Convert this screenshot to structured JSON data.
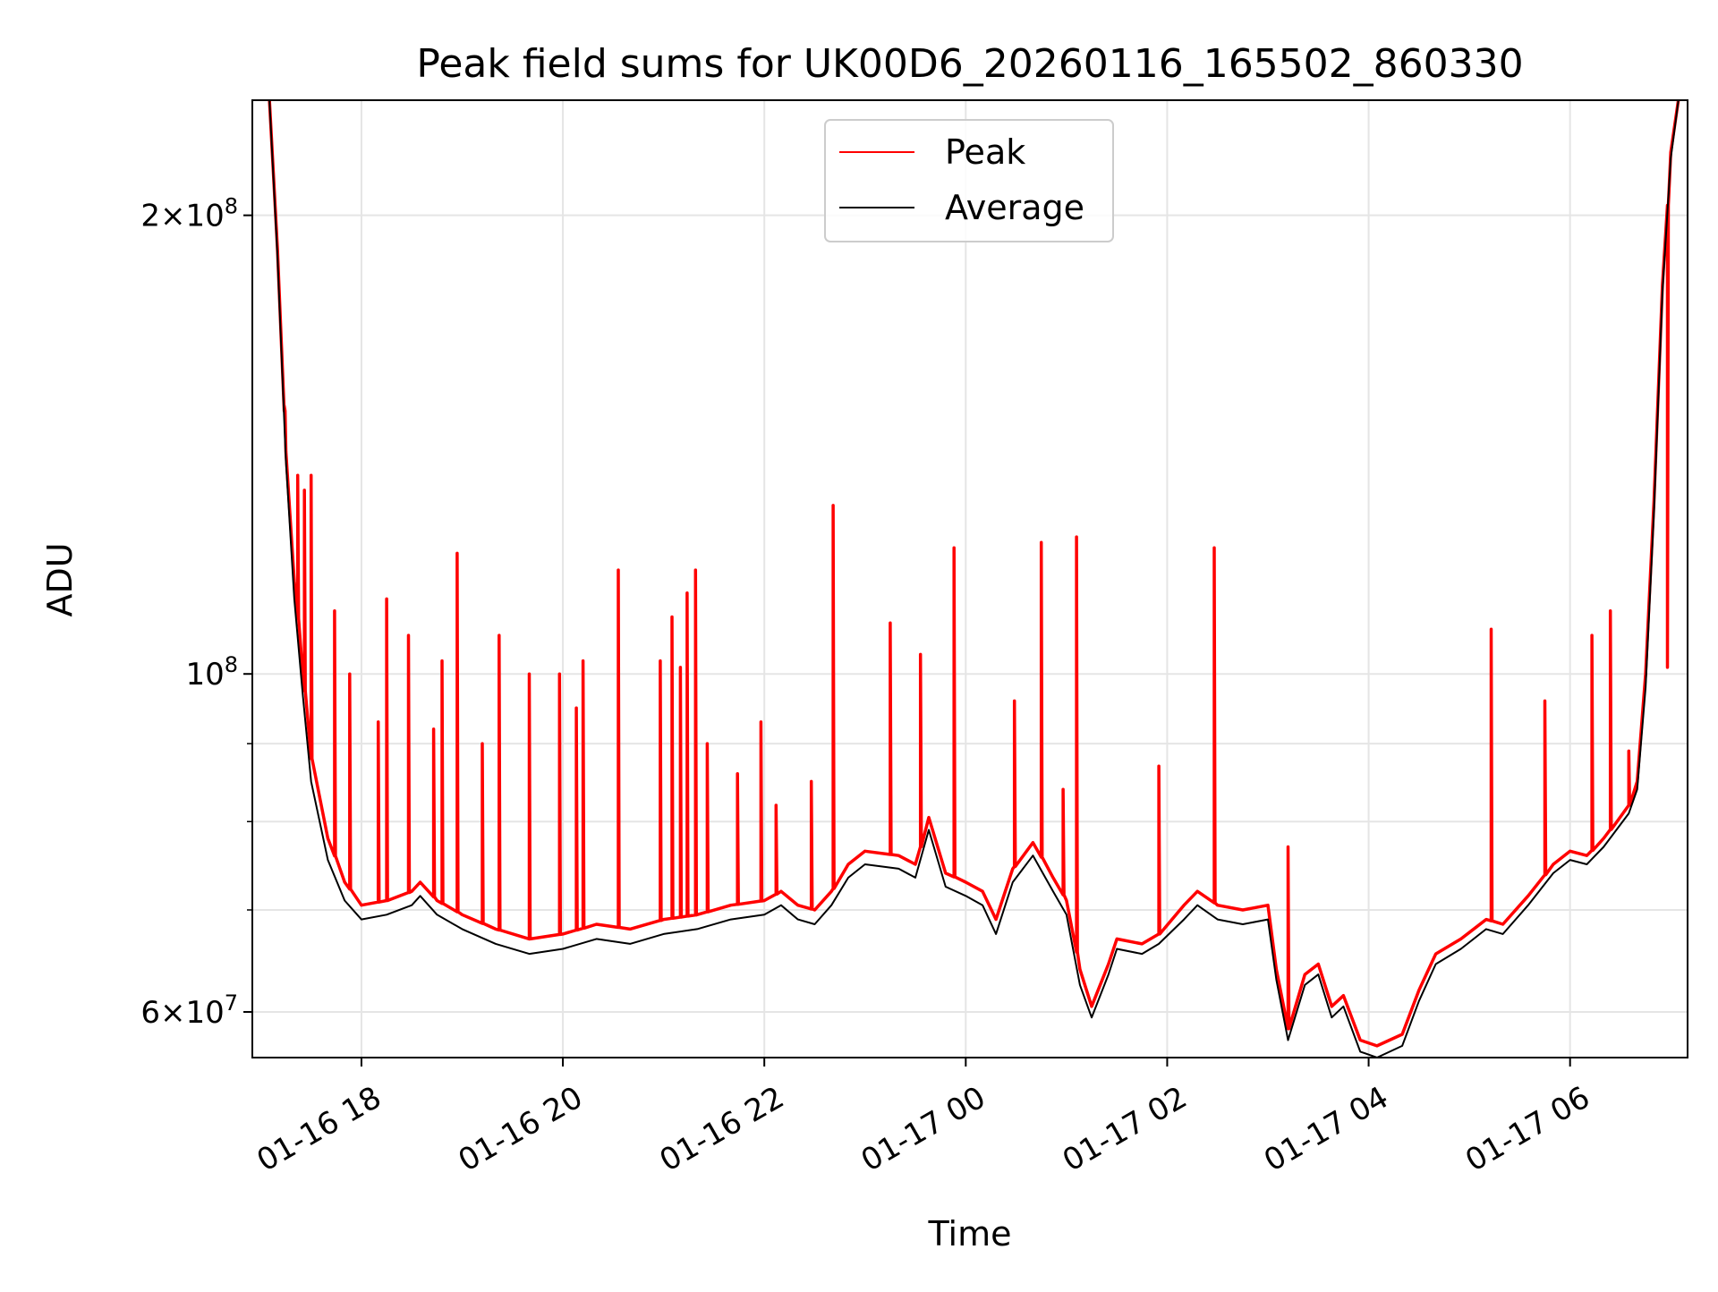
{
  "chart_data": {
    "type": "line",
    "title": "Peak field sums for UK00D6_20260116_165502_860330",
    "xlabel": "Time",
    "ylabel": "ADU",
    "yscale": "log",
    "ylim": [
      56000000,
      238000000
    ],
    "xlim": [
      "2026-01-16 16:55",
      "2026-01-17 07:10"
    ],
    "x_ticks": [
      {
        "label": "01-16 18",
        "t": "2026-01-16 18:00"
      },
      {
        "label": "01-16 20",
        "t": "2026-01-16 20:00"
      },
      {
        "label": "01-16 22",
        "t": "2026-01-16 22:00"
      },
      {
        "label": "01-17 00",
        "t": "2026-01-17 00:00"
      },
      {
        "label": "01-17 02",
        "t": "2026-01-17 02:00"
      },
      {
        "label": "01-17 04",
        "t": "2026-01-17 04:00"
      },
      {
        "label": "01-17 06",
        "t": "2026-01-17 06:00"
      }
    ],
    "y_ticks": [
      {
        "value": 60000000,
        "base": "6",
        "exp": "7"
      },
      {
        "value": 100000000,
        "base": "",
        "exp": "8"
      },
      {
        "value": 200000000,
        "base": "2",
        "exp": "8"
      }
    ],
    "y_minor_ticks": [
      70000000,
      80000000,
      90000000
    ],
    "grid": true,
    "legend_position": "upper center",
    "series": [
      {
        "name": "Peak",
        "color": "#ff0000",
        "points": [
          [
            "2026-01-16 17:05",
            240000000
          ],
          [
            "2026-01-16 17:10",
            190000000
          ],
          [
            "2026-01-16 17:15",
            140000000
          ],
          [
            "2026-01-16 17:20",
            115000000
          ],
          [
            "2026-01-16 17:25",
            100000000
          ],
          [
            "2026-01-16 17:30",
            88000000
          ],
          [
            "2026-01-16 17:40",
            78000000
          ],
          [
            "2026-01-16 17:50",
            73000000
          ],
          [
            "2026-01-16 18:00",
            70500000
          ],
          [
            "2026-01-16 18:15",
            71000000
          ],
          [
            "2026-01-16 18:30",
            72000000
          ],
          [
            "2026-01-16 18:35",
            73000000
          ],
          [
            "2026-01-16 18:45",
            71000000
          ],
          [
            "2026-01-16 19:00",
            69500000
          ],
          [
            "2026-01-16 19:20",
            68000000
          ],
          [
            "2026-01-16 19:40",
            67000000
          ],
          [
            "2026-01-16 20:00",
            67500000
          ],
          [
            "2026-01-16 20:20",
            68500000
          ],
          [
            "2026-01-16 20:40",
            68000000
          ],
          [
            "2026-01-16 21:00",
            69000000
          ],
          [
            "2026-01-16 21:20",
            69500000
          ],
          [
            "2026-01-16 21:40",
            70500000
          ],
          [
            "2026-01-16 22:00",
            71000000
          ],
          [
            "2026-01-16 22:10",
            72000000
          ],
          [
            "2026-01-16 22:20",
            70500000
          ],
          [
            "2026-01-16 22:30",
            70000000
          ],
          [
            "2026-01-16 22:40",
            72000000
          ],
          [
            "2026-01-16 22:50",
            75000000
          ],
          [
            "2026-01-16 23:00",
            76500000
          ],
          [
            "2026-01-16 23:20",
            76000000
          ],
          [
            "2026-01-16 23:30",
            75000000
          ],
          [
            "2026-01-16 23:38",
            80500000
          ],
          [
            "2026-01-16 23:48",
            74000000
          ],
          [
            "2026-01-17 00:00",
            73000000
          ],
          [
            "2026-01-17 00:10",
            72000000
          ],
          [
            "2026-01-17 00:18",
            69000000
          ],
          [
            "2026-01-17 00:28",
            74500000
          ],
          [
            "2026-01-17 00:40",
            77500000
          ],
          [
            "2026-01-17 00:52",
            73500000
          ],
          [
            "2026-01-17 01:00",
            71000000
          ],
          [
            "2026-01-17 01:08",
            64000000
          ],
          [
            "2026-01-17 01:15",
            60500000
          ],
          [
            "2026-01-17 01:25",
            64500000
          ],
          [
            "2026-01-17 01:30",
            67000000
          ],
          [
            "2026-01-17 01:45",
            66500000
          ],
          [
            "2026-01-17 01:55",
            67500000
          ],
          [
            "2026-01-17 02:10",
            70500000
          ],
          [
            "2026-01-17 02:18",
            72000000
          ],
          [
            "2026-01-17 02:30",
            70500000
          ],
          [
            "2026-01-17 02:45",
            70000000
          ],
          [
            "2026-01-17 03:00",
            70500000
          ],
          [
            "2026-01-17 03:05",
            64000000
          ],
          [
            "2026-01-17 03:12",
            58500000
          ],
          [
            "2026-01-17 03:22",
            63500000
          ],
          [
            "2026-01-17 03:30",
            64500000
          ],
          [
            "2026-01-17 03:38",
            60500000
          ],
          [
            "2026-01-17 03:45",
            61500000
          ],
          [
            "2026-01-17 03:55",
            57500000
          ],
          [
            "2026-01-17 04:05",
            57000000
          ],
          [
            "2026-01-17 04:20",
            58000000
          ],
          [
            "2026-01-17 04:30",
            62000000
          ],
          [
            "2026-01-17 04:40",
            65500000
          ],
          [
            "2026-01-17 04:55",
            67000000
          ],
          [
            "2026-01-17 05:10",
            69000000
          ],
          [
            "2026-01-17 05:20",
            68500000
          ],
          [
            "2026-01-17 05:35",
            71500000
          ],
          [
            "2026-01-17 05:50",
            75000000
          ],
          [
            "2026-01-17 06:00",
            76500000
          ],
          [
            "2026-01-17 06:10",
            76000000
          ],
          [
            "2026-01-17 06:20",
            78000000
          ],
          [
            "2026-01-17 06:35",
            82000000
          ],
          [
            "2026-01-17 06:40",
            85000000
          ],
          [
            "2026-01-17 06:45",
            100000000
          ],
          [
            "2026-01-17 06:50",
            130000000
          ],
          [
            "2026-01-17 06:55",
            180000000
          ],
          [
            "2026-01-17 07:00",
            220000000
          ],
          [
            "2026-01-17 07:05",
            240000000
          ]
        ],
        "spikes": [
          [
            "2026-01-16 17:14",
            150000000
          ],
          [
            "2026-01-16 17:22",
            135000000
          ],
          [
            "2026-01-16 17:26",
            132000000
          ],
          [
            "2026-01-16 17:30",
            135000000
          ],
          [
            "2026-01-16 17:44",
            110000000
          ],
          [
            "2026-01-16 17:53",
            100000000
          ],
          [
            "2026-01-16 18:10",
            93000000
          ],
          [
            "2026-01-16 18:15",
            112000000
          ],
          [
            "2026-01-16 18:28",
            106000000
          ],
          [
            "2026-01-16 18:43",
            92000000
          ],
          [
            "2026-01-16 18:48",
            102000000
          ],
          [
            "2026-01-16 18:57",
            120000000
          ],
          [
            "2026-01-16 19:12",
            90000000
          ],
          [
            "2026-01-16 19:22",
            106000000
          ],
          [
            "2026-01-16 19:40",
            100000000
          ],
          [
            "2026-01-16 19:58",
            100000000
          ],
          [
            "2026-01-16 20:08",
            95000000
          ],
          [
            "2026-01-16 20:12",
            102000000
          ],
          [
            "2026-01-16 20:33",
            117000000
          ],
          [
            "2026-01-16 20:58",
            102000000
          ],
          [
            "2026-01-16 21:05",
            109000000
          ],
          [
            "2026-01-16 21:10",
            101000000
          ],
          [
            "2026-01-16 21:14",
            113000000
          ],
          [
            "2026-01-16 21:19",
            117000000
          ],
          [
            "2026-01-16 21:26",
            90000000
          ],
          [
            "2026-01-16 21:44",
            86000000
          ],
          [
            "2026-01-16 21:58",
            93000000
          ],
          [
            "2026-01-16 22:07",
            82000000
          ],
          [
            "2026-01-16 22:28",
            85000000
          ],
          [
            "2026-01-16 22:41",
            129000000
          ],
          [
            "2026-01-16 23:15",
            108000000
          ],
          [
            "2026-01-16 23:33",
            103000000
          ],
          [
            "2026-01-16 23:53",
            121000000
          ],
          [
            "2026-01-17 00:29",
            96000000
          ],
          [
            "2026-01-17 00:45",
            122000000
          ],
          [
            "2026-01-17 00:58",
            84000000
          ],
          [
            "2026-01-17 01:06",
            123000000
          ],
          [
            "2026-01-17 01:55",
            87000000
          ],
          [
            "2026-01-17 02:28",
            121000000
          ],
          [
            "2026-01-17 03:12",
            77000000
          ],
          [
            "2026-01-17 05:13",
            107000000
          ],
          [
            "2026-01-17 05:45",
            96000000
          ],
          [
            "2026-01-17 06:13",
            106000000
          ],
          [
            "2026-01-17 06:24",
            110000000
          ],
          [
            "2026-01-17 06:35",
            89000000
          ],
          [
            "2026-01-17 06:58",
            101000000
          ]
        ]
      },
      {
        "name": "Average",
        "color": "#000000",
        "points": [
          [
            "2026-01-16 17:05",
            240000000
          ],
          [
            "2026-01-16 17:10",
            188000000
          ],
          [
            "2026-01-16 17:15",
            138000000
          ],
          [
            "2026-01-16 17:20",
            112000000
          ],
          [
            "2026-01-16 17:25",
            97000000
          ],
          [
            "2026-01-16 17:30",
            85000000
          ],
          [
            "2026-01-16 17:40",
            75500000
          ],
          [
            "2026-01-16 17:50",
            71000000
          ],
          [
            "2026-01-16 18:00",
            69000000
          ],
          [
            "2026-01-16 18:15",
            69500000
          ],
          [
            "2026-01-16 18:30",
            70500000
          ],
          [
            "2026-01-16 18:35",
            71500000
          ],
          [
            "2026-01-16 18:45",
            69500000
          ],
          [
            "2026-01-16 19:00",
            68000000
          ],
          [
            "2026-01-16 19:20",
            66500000
          ],
          [
            "2026-01-16 19:40",
            65500000
          ],
          [
            "2026-01-16 20:00",
            66000000
          ],
          [
            "2026-01-16 20:20",
            67000000
          ],
          [
            "2026-01-16 20:40",
            66500000
          ],
          [
            "2026-01-16 21:00",
            67500000
          ],
          [
            "2026-01-16 21:20",
            68000000
          ],
          [
            "2026-01-16 21:40",
            69000000
          ],
          [
            "2026-01-16 22:00",
            69500000
          ],
          [
            "2026-01-16 22:10",
            70500000
          ],
          [
            "2026-01-16 22:20",
            69000000
          ],
          [
            "2026-01-16 22:30",
            68500000
          ],
          [
            "2026-01-16 22:40",
            70500000
          ],
          [
            "2026-01-16 22:50",
            73500000
          ],
          [
            "2026-01-16 23:00",
            75000000
          ],
          [
            "2026-01-16 23:20",
            74500000
          ],
          [
            "2026-01-16 23:30",
            73500000
          ],
          [
            "2026-01-16 23:38",
            79000000
          ],
          [
            "2026-01-16 23:48",
            72500000
          ],
          [
            "2026-01-17 00:00",
            71500000
          ],
          [
            "2026-01-17 00:10",
            70500000
          ],
          [
            "2026-01-17 00:18",
            67500000
          ],
          [
            "2026-01-17 00:28",
            73000000
          ],
          [
            "2026-01-17 00:40",
            76000000
          ],
          [
            "2026-01-17 00:52",
            72000000
          ],
          [
            "2026-01-17 01:00",
            69500000
          ],
          [
            "2026-01-17 01:08",
            62500000
          ],
          [
            "2026-01-17 01:15",
            59500000
          ],
          [
            "2026-01-17 01:25",
            63500000
          ],
          [
            "2026-01-17 01:30",
            66000000
          ],
          [
            "2026-01-17 01:45",
            65500000
          ],
          [
            "2026-01-17 01:55",
            66500000
          ],
          [
            "2026-01-17 02:10",
            69000000
          ],
          [
            "2026-01-17 02:18",
            70500000
          ],
          [
            "2026-01-17 02:30",
            69000000
          ],
          [
            "2026-01-17 02:45",
            68500000
          ],
          [
            "2026-01-17 03:00",
            69000000
          ],
          [
            "2026-01-17 03:05",
            63000000
          ],
          [
            "2026-01-17 03:12",
            57500000
          ],
          [
            "2026-01-17 03:22",
            62500000
          ],
          [
            "2026-01-17 03:30",
            63500000
          ],
          [
            "2026-01-17 03:38",
            59500000
          ],
          [
            "2026-01-17 03:45",
            60500000
          ],
          [
            "2026-01-17 03:55",
            56500000
          ],
          [
            "2026-01-17 04:05",
            56000000
          ],
          [
            "2026-01-17 04:20",
            57000000
          ],
          [
            "2026-01-17 04:30",
            61000000
          ],
          [
            "2026-01-17 04:40",
            64500000
          ],
          [
            "2026-01-17 04:55",
            66000000
          ],
          [
            "2026-01-17 05:10",
            68000000
          ],
          [
            "2026-01-17 05:20",
            67500000
          ],
          [
            "2026-01-17 05:35",
            70500000
          ],
          [
            "2026-01-17 05:50",
            74000000
          ],
          [
            "2026-01-17 06:00",
            75500000
          ],
          [
            "2026-01-17 06:10",
            75000000
          ],
          [
            "2026-01-17 06:20",
            77000000
          ],
          [
            "2026-01-17 06:35",
            81000000
          ],
          [
            "2026-01-17 06:40",
            84000000
          ],
          [
            "2026-01-17 06:45",
            98000000
          ],
          [
            "2026-01-17 06:50",
            128000000
          ],
          [
            "2026-01-17 06:55",
            178000000
          ],
          [
            "2026-01-17 07:00",
            218000000
          ],
          [
            "2026-01-17 07:05",
            240000000
          ]
        ]
      }
    ]
  },
  "colors": {
    "grid": "#e5e5e5",
    "axes": "#000000",
    "legend_border": "#cccccc"
  }
}
